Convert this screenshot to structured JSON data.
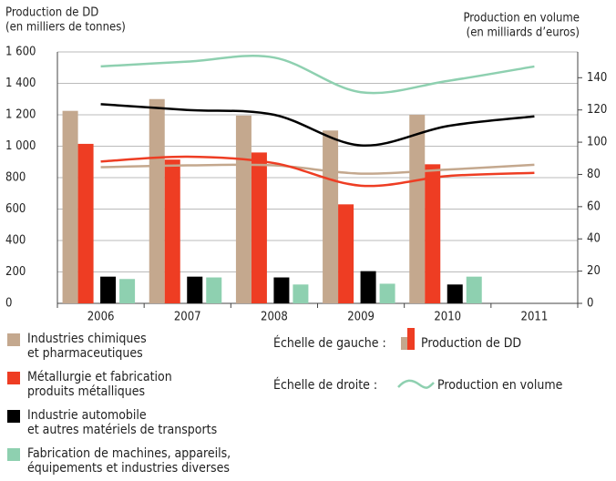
{
  "chart_data": {
    "type": "bar_line",
    "y_title": [
      "Production de DD",
      "(en milliers de tonnes)"
    ],
    "y2_title": [
      "Production en volume",
      "(en milliards d’euros)"
    ],
    "categories": [
      "2006",
      "2007",
      "2008",
      "2009",
      "2010",
      "2011"
    ],
    "ylim": [
      0,
      1600
    ],
    "yticks": [
      0,
      200,
      400,
      600,
      800,
      {
        "value": 1000,
        "label": "1 000"
      },
      {
        "value": 1200,
        "label": "1 200"
      },
      {
        "value": 1400,
        "label": "1 400"
      },
      {
        "value": 1600,
        "label": "1 600"
      }
    ],
    "y2lim": [
      0,
      156
    ],
    "y2ticks": [
      0,
      20,
      40,
      60,
      80,
      100,
      120,
      140
    ],
    "grid": true,
    "series": [
      {
        "name": [
          "Industries chimiques",
          "et pharmaceutiques"
        ],
        "color": "#c4a88e",
        "values": [
          1225,
          1300,
          1195,
          1100,
          1200,
          null
        ],
        "volume": [
          84.5,
          85.6,
          85.6,
          80.5,
          83,
          86
        ]
      },
      {
        "name": [
          "Métallurgie et fabrication",
          "produits métalliques"
        ],
        "color": "#ee3d23",
        "values": [
          1015,
          915,
          960,
          630,
          885,
          null
        ],
        "volume": [
          88,
          91,
          87,
          73,
          79,
          81
        ]
      },
      {
        "name": [
          "Industrie automobile",
          "et autres matériels de transports"
        ],
        "color": "#000000",
        "values": [
          170,
          170,
          165,
          205,
          120,
          null
        ],
        "volume": [
          123.6,
          120,
          117,
          98,
          110,
          116
        ]
      },
      {
        "name": [
          "Fabrication de machines, appareils,",
          "équipements et industries diverses"
        ],
        "color": "#8ed0b0",
        "values": [
          155,
          165,
          120,
          125,
          170,
          null
        ],
        "volume": [
          147,
          150,
          152.5,
          131,
          138,
          147
        ]
      }
    ],
    "scale_left": "Échelle de gauche :",
    "scale_left_label": "Production de DD",
    "scale_right": "Échelle de droite :",
    "scale_right_label": "Production en volume"
  }
}
